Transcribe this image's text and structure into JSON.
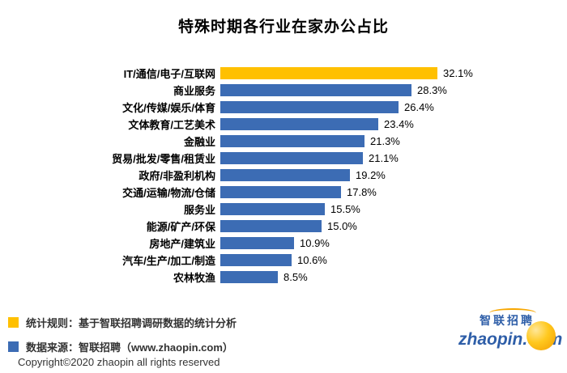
{
  "title": "特殊时期各行业在家办公占比",
  "chart_data": {
    "type": "bar",
    "orientation": "horizontal",
    "title": "特殊时期各行业在家办公占比",
    "xlabel": "",
    "ylabel": "",
    "xlim": [
      0,
      35
    ],
    "grid": false,
    "categories": [
      "IT/通信/电子/互联网",
      "商业服务",
      "文化/传媒/娱乐/体育",
      "文体教育/工艺美术",
      "金融业",
      "贸易/批发/零售/租赁业",
      "政府/非盈利机构",
      "交通/运输/物流/仓储",
      "服务业",
      "能源/矿产/环保",
      "房地产/建筑业",
      "汽车/生产/加工/制造",
      "农林牧渔"
    ],
    "values": [
      32.1,
      28.3,
      26.4,
      23.4,
      21.3,
      21.1,
      19.2,
      17.8,
      15.5,
      15.0,
      10.9,
      10.6,
      8.5
    ],
    "value_labels": [
      "32.1%",
      "28.3%",
      "26.4%",
      "23.4%",
      "21.3%",
      "21.1%",
      "19.2%",
      "17.8%",
      "15.5%",
      "15.0%",
      "10.9%",
      "10.6%",
      "8.5%"
    ],
    "highlight_index": 0,
    "highlight_color": "#ffc000",
    "bar_color": "#3c6cb4"
  },
  "legend": {
    "items": [
      {
        "color": "#ffc000",
        "label": "统计规则：基于智联招聘调研数据的统计分析"
      },
      {
        "color": "#3c6cb4",
        "label": "数据来源：智联招聘（www.zhaopin.com）"
      }
    ]
  },
  "footer": {
    "copyright": "Copyright©2020 zhaopin all rights reserved"
  },
  "logo": {
    "cn": "智联招聘",
    "domain": "zhaopin.com",
    "ball_icon": "zhaopin-ball-icon",
    "brand_blue": "#2e5ea8",
    "brand_orange": "#f7a600"
  }
}
